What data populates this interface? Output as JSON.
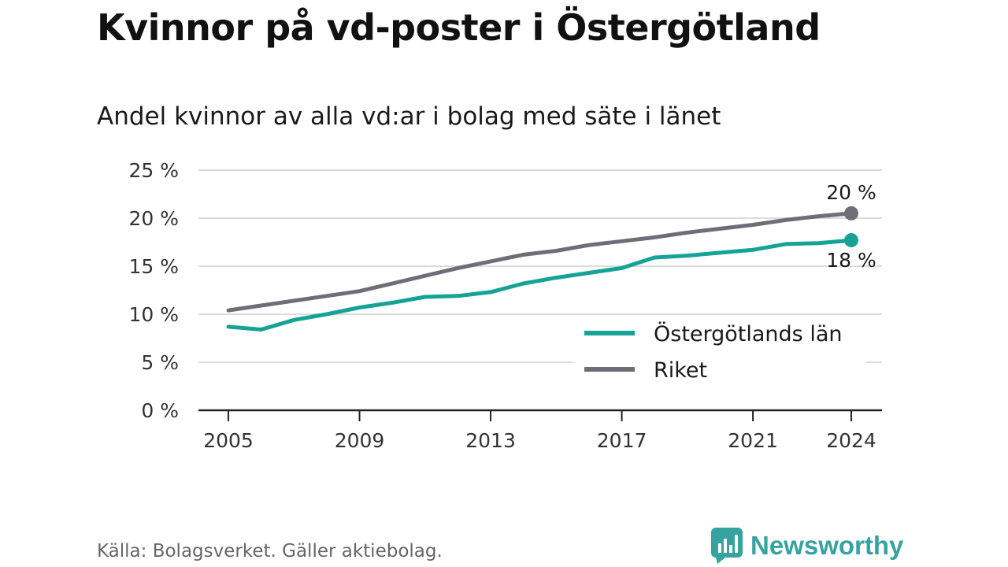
{
  "title": "Kvinnor på vd-poster i Östergötland",
  "subtitle": "Andel kvinnor av alla vd:ar i bolag med säte i länet",
  "source": "Källa: Bolagsverket. Gäller aktiebolag.",
  "brand": {
    "name": "Newsworthy",
    "icon": "newsworthy-logo-icon",
    "color": "#36a3a0"
  },
  "chart_data": {
    "type": "line",
    "title": "Kvinnor på vd-poster i Östergötland",
    "xlabel": "",
    "ylabel": "",
    "x": [
      2005,
      2006,
      2007,
      2008,
      2009,
      2010,
      2011,
      2012,
      2013,
      2014,
      2015,
      2016,
      2017,
      2018,
      2019,
      2020,
      2021,
      2022,
      2023,
      2024
    ],
    "xticks": [
      2005,
      2009,
      2013,
      2017,
      2021,
      2024
    ],
    "xlim": [
      2005,
      2024
    ],
    "ylim": [
      0,
      25
    ],
    "yticks": [
      0,
      5,
      10,
      15,
      20,
      25
    ],
    "yticklabels": [
      "0 %",
      "5 %",
      "10 %",
      "15 %",
      "20 %",
      "25 %"
    ],
    "grid": "horizontal",
    "legend": "bottom-right",
    "series": [
      {
        "name": "Östergötlands län",
        "color": "#16a396",
        "end_label": "18 %",
        "values": [
          8.7,
          8.4,
          9.4,
          10.0,
          10.7,
          11.2,
          11.8,
          11.9,
          12.3,
          13.2,
          13.8,
          14.3,
          14.8,
          15.9,
          16.1,
          16.4,
          16.7,
          17.3,
          17.4,
          17.7
        ]
      },
      {
        "name": "Riket",
        "color": "#6e6e78",
        "end_label": "20 %",
        "values": [
          10.4,
          10.9,
          11.4,
          11.9,
          12.4,
          13.2,
          14.0,
          14.8,
          15.5,
          16.2,
          16.6,
          17.2,
          17.6,
          18.0,
          18.5,
          18.9,
          19.3,
          19.8,
          20.2,
          20.5
        ]
      }
    ]
  }
}
